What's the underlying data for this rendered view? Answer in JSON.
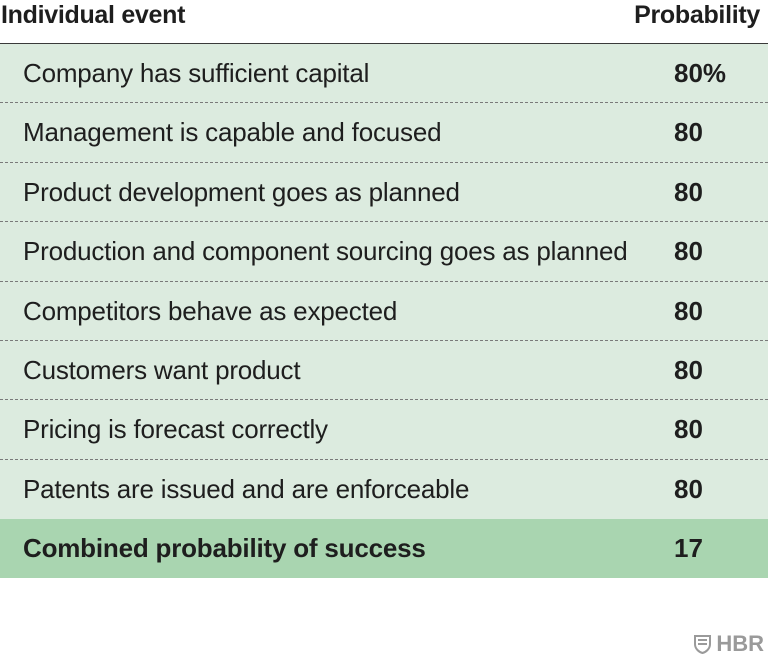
{
  "chart_data": {
    "type": "table",
    "columns": [
      "Individual event",
      "Probability"
    ],
    "rows": [
      {
        "event": "Company has sufficient capital",
        "probability": "80%"
      },
      {
        "event": "Management is capable and focused",
        "probability": "80"
      },
      {
        "event": "Product development goes as planned",
        "probability": "80"
      },
      {
        "event": "Production and component sourcing goes as planned",
        "probability": "80"
      },
      {
        "event": "Competitors behave as expected",
        "probability": "80"
      },
      {
        "event": "Customers want product",
        "probability": "80"
      },
      {
        "event": "Pricing is forecast correctly",
        "probability": "80"
      },
      {
        "event": "Patents are issued and are enforceable",
        "probability": "80"
      }
    ],
    "total": {
      "event": "Combined probability of success",
      "probability": "17"
    }
  },
  "colors": {
    "row_background": "#dcebdf",
    "total_background": "#a9d5b0",
    "logo": "#9a9a9a"
  },
  "brand": {
    "logo_icon": "hbr-shield-icon",
    "logo_text": "HBR"
  }
}
